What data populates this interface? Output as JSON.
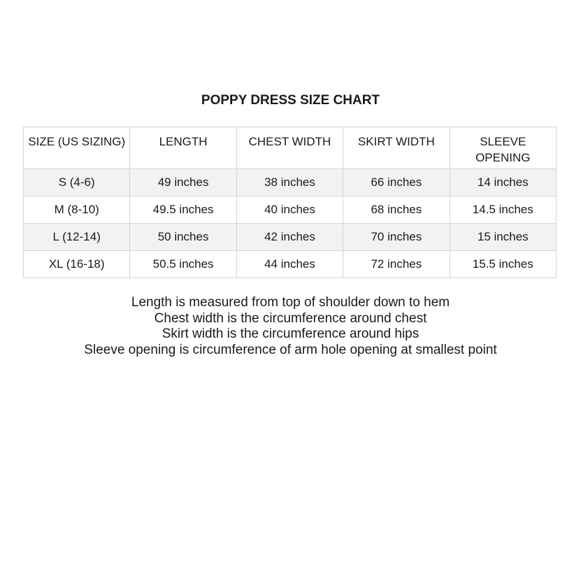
{
  "title": "POPPY DRESS SIZE CHART",
  "table": {
    "headers": [
      "SIZE (US SIZING)",
      "LENGTH",
      "CHEST WIDTH",
      "SKIRT WIDTH",
      "SLEEVE OPENING"
    ],
    "rows": [
      [
        "S (4-6)",
        "49 inches",
        "38 inches",
        "66 inches",
        "14 inches"
      ],
      [
        "M (8-10)",
        "49.5 inches",
        "40 inches",
        "68 inches",
        "14.5 inches"
      ],
      [
        "L (12-14)",
        "50 inches",
        "42 inches",
        "70 inches",
        "15 inches"
      ],
      [
        "XL (16-18)",
        "50.5 inches",
        "44 inches",
        "72 inches",
        "15.5 inches"
      ]
    ]
  },
  "notes": [
    "Length is measured from top of shoulder down to hem",
    "Chest width is the circumference around chest",
    "Skirt width is the circumference around hips",
    "Sleeve opening is circumference of arm hole opening at smallest point"
  ]
}
